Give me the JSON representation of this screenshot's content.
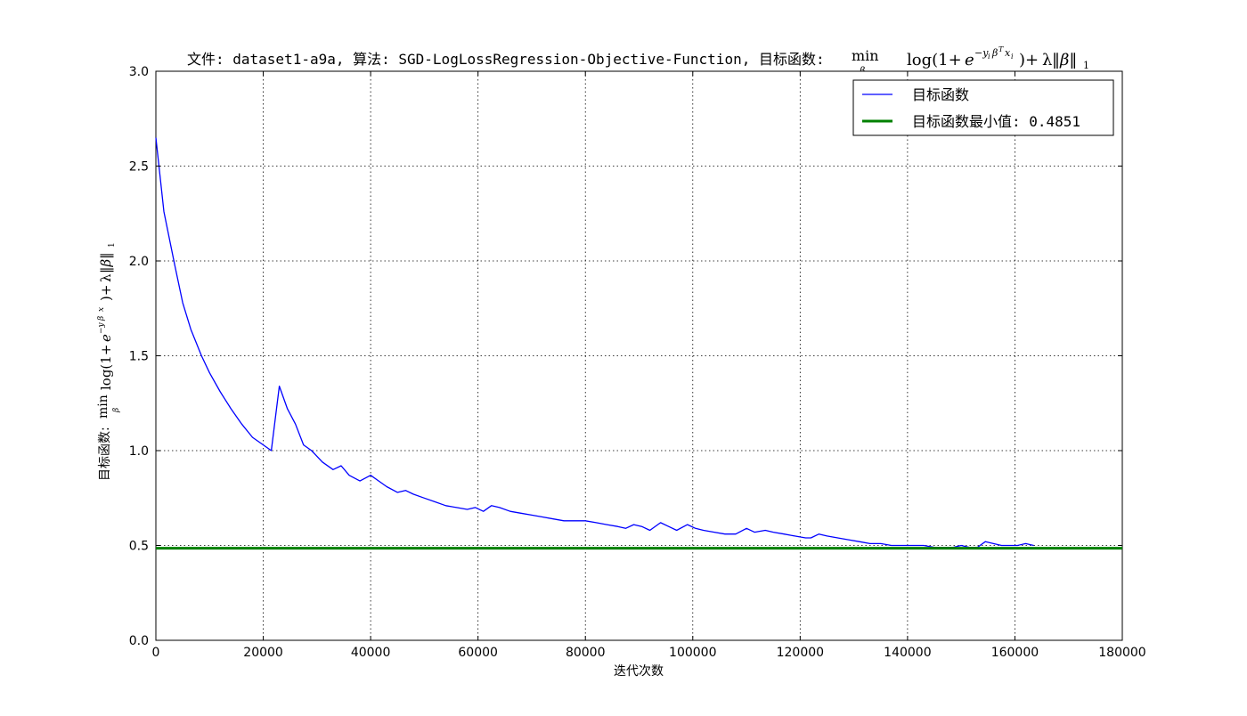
{
  "chart_data": {
    "type": "line",
    "title_prefix": "文件: dataset1-a9a, 算法: SGD-LogLossRegression-Objective-Function, 目标函数:",
    "title_formula": "min log(1+e^{-y_i β^T x_i})+λ‖β‖₁",
    "formula_min": "min",
    "formula_beta": "β",
    "formula_log": "log(1+",
    "formula_e": "e",
    "formula_exp": "−y",
    "formula_exp_i": "i",
    "formula_exp_beta": "β",
    "formula_exp_T": "T",
    "formula_exp_x": "x",
    "formula_close": ")+",
    "formula_lambda": "λ",
    "formula_norm": "‖β‖",
    "formula_norm_sub": "1",
    "xlabel": "迭代次数",
    "ylabel_prefix": "目标函数:",
    "xlim": [
      0,
      180000
    ],
    "ylim": [
      0.0,
      3.0
    ],
    "x_ticks": [
      "0",
      "20000",
      "40000",
      "60000",
      "80000",
      "100000",
      "120000",
      "140000",
      "160000",
      "180000"
    ],
    "y_ticks": [
      "0.0",
      "0.5",
      "1.0",
      "1.5",
      "2.0",
      "2.5",
      "3.0"
    ],
    "grid": true,
    "legend_position": "top-right",
    "series": [
      {
        "name": "目标函数",
        "color": "#0000ff",
        "x": [
          0,
          1500,
          3500,
          5000,
          6500,
          8500,
          10000,
          12000,
          14000,
          16000,
          18000,
          20000,
          21500,
          23000,
          24500,
          26000,
          27500,
          29000,
          31000,
          33000,
          34500,
          36000,
          38000,
          40000,
          41500,
          43000,
          45000,
          46500,
          48000,
          50000,
          52000,
          54000,
          56000,
          58000,
          59500,
          61000,
          62500,
          64000,
          66000,
          68000,
          70000,
          72000,
          74000,
          76000,
          78000,
          80000,
          82000,
          84000,
          86000,
          87500,
          89000,
          90500,
          92000,
          94000,
          95500,
          97000,
          99000,
          100500,
          102000,
          104000,
          106000,
          108000,
          110000,
          111500,
          113500,
          115000,
          117000,
          119000,
          121000,
          122000,
          123500,
          125000,
          127000,
          129000,
          131000,
          133000,
          135000,
          137000,
          139000,
          141000,
          143000,
          145000,
          147000,
          148500,
          150000,
          151500,
          153000,
          154500,
          156000,
          157500,
          159000,
          160500,
          162000,
          163500
        ],
        "y": [
          2.65,
          2.26,
          1.98,
          1.78,
          1.64,
          1.5,
          1.41,
          1.31,
          1.22,
          1.14,
          1.07,
          1.03,
          1.0,
          1.34,
          1.22,
          1.14,
          1.03,
          1.0,
          0.94,
          0.9,
          0.92,
          0.87,
          0.84,
          0.87,
          0.84,
          0.81,
          0.78,
          0.79,
          0.77,
          0.75,
          0.73,
          0.71,
          0.7,
          0.69,
          0.7,
          0.68,
          0.71,
          0.7,
          0.68,
          0.67,
          0.66,
          0.65,
          0.64,
          0.63,
          0.63,
          0.63,
          0.62,
          0.61,
          0.6,
          0.59,
          0.61,
          0.6,
          0.58,
          0.62,
          0.6,
          0.58,
          0.61,
          0.59,
          0.58,
          0.57,
          0.56,
          0.56,
          0.59,
          0.57,
          0.58,
          0.57,
          0.56,
          0.55,
          0.54,
          0.54,
          0.56,
          0.55,
          0.54,
          0.53,
          0.52,
          0.51,
          0.51,
          0.5,
          0.5,
          0.5,
          0.5,
          0.49,
          0.49,
          0.49,
          0.5,
          0.49,
          0.49,
          0.52,
          0.51,
          0.5,
          0.5,
          0.5,
          0.51,
          0.5
        ]
      },
      {
        "name": "目标函数最小值: 0.4851",
        "color": "#008000",
        "type": "hline",
        "value": 0.4851
      }
    ]
  }
}
